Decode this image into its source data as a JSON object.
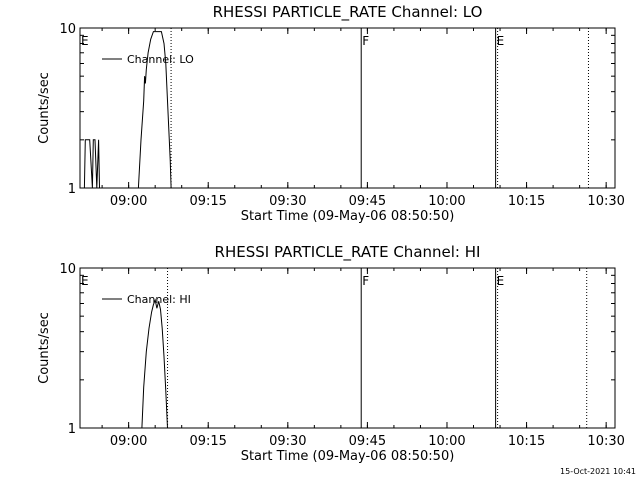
{
  "chart_data": [
    {
      "type": "line",
      "title": "RHESSI PARTICLE_RATE Channel: LO",
      "xlabel": "Start Time (09-May-06 08:50:50)",
      "ylabel": "Counts/sec",
      "yscale": "log",
      "ylim": [
        1,
        10
      ],
      "xlim": [
        "08:50:50",
        "10:31:40"
      ],
      "yticks": [
        "1",
        "10"
      ],
      "xticks": [
        "09:00",
        "09:15",
        "09:30",
        "09:45",
        "10:00",
        "10:15",
        "10:30"
      ],
      "legend": {
        "label": "Channel: LO",
        "position": "top-left"
      },
      "flags": [
        {
          "label": "E",
          "time": "08:50:50",
          "style": "none"
        },
        {
          "label": "",
          "time": "09:08:00",
          "style": "dotted"
        },
        {
          "label": "F",
          "time": "09:43:50",
          "style": "solid"
        },
        {
          "label": "E",
          "time": "10:09:10",
          "style": "solid-dotted"
        },
        {
          "label": "",
          "time": "10:26:40",
          "style": "dotted"
        }
      ],
      "series": [
        {
          "name": "Channel: LO",
          "x": [
            "08:51:40",
            "08:51:50",
            "08:52:10",
            "08:52:40",
            "08:53:10",
            "08:53:20",
            "08:53:40",
            "08:54:00",
            "08:54:20",
            "08:54:30",
            "09:01:50",
            "09:02:20",
            "09:02:50",
            "09:03:00",
            "09:03:10",
            "09:03:20",
            "09:03:40",
            "09:04:10",
            "09:04:40",
            "09:05:10",
            "09:05:40",
            "09:06:10",
            "09:06:40",
            "09:07:00",
            "09:07:20",
            "09:07:50",
            "09:08:00"
          ],
          "y": [
            1,
            2,
            2,
            2,
            1,
            2,
            2,
            1,
            2,
            1,
            1,
            2,
            3.5,
            5,
            4.5,
            5.5,
            7,
            8.5,
            9.5,
            9.5,
            9.5,
            9.5,
            8,
            6,
            3.5,
            1.5,
            1
          ]
        }
      ]
    },
    {
      "type": "line",
      "title": "RHESSI PARTICLE_RATE Channel: HI",
      "xlabel": "Start Time (09-May-06 08:50:50)",
      "ylabel": "Counts/sec",
      "yscale": "log",
      "ylim": [
        1,
        10
      ],
      "xlim": [
        "08:50:50",
        "10:31:40"
      ],
      "yticks": [
        "1",
        "10"
      ],
      "xticks": [
        "09:00",
        "09:15",
        "09:30",
        "09:45",
        "10:00",
        "10:15",
        "10:30"
      ],
      "legend": {
        "label": "Channel: HI",
        "position": "top-left"
      },
      "flags": [
        {
          "label": "E",
          "time": "08:50:50",
          "style": "none"
        },
        {
          "label": "",
          "time": "09:07:20",
          "style": "dotted"
        },
        {
          "label": "F",
          "time": "09:43:50",
          "style": "solid"
        },
        {
          "label": "E",
          "time": "10:09:10",
          "style": "solid-dotted"
        },
        {
          "label": "",
          "time": "10:26:20",
          "style": "dotted"
        }
      ],
      "series": [
        {
          "name": "Channel: HI",
          "x": [
            "09:02:30",
            "09:02:50",
            "09:03:20",
            "09:03:50",
            "09:04:20",
            "09:04:40",
            "09:05:00",
            "09:05:20",
            "09:05:40",
            "09:06:00",
            "09:06:20",
            "09:06:40",
            "09:07:00",
            "09:07:20"
          ],
          "y": [
            1,
            1.8,
            3,
            4.2,
            5.3,
            5.9,
            6.3,
            5.6,
            6.2,
            5.5,
            4.2,
            2.8,
            1.7,
            1
          ]
        }
      ]
    }
  ],
  "timestamp": "15-Oct-2021 10:41"
}
